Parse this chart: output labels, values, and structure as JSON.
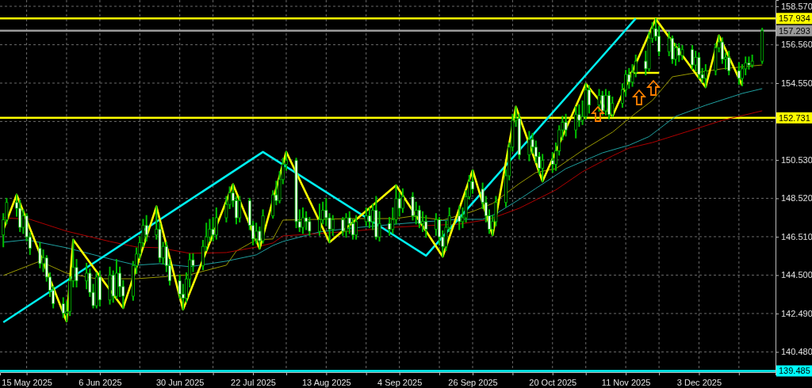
{
  "chart_data": {
    "type": "candlestick",
    "color": "#00c000",
    "x": [
      "2025-05-08",
      "2025-05-09",
      "2025-05-12",
      "2025-05-13",
      "2025-05-14",
      "2025-05-15",
      "2025-05-16",
      "2025-05-19",
      "2025-05-20",
      "2025-05-21",
      "2025-05-22",
      "2025-05-23",
      "2025-05-26",
      "2025-05-27",
      "2025-05-28",
      "2025-05-29",
      "2025-05-30",
      "2025-06-02",
      "2025-06-03",
      "2025-06-04",
      "2025-06-05",
      "2025-06-06",
      "2025-06-09",
      "2025-06-10",
      "2025-06-11",
      "2025-06-12",
      "2025-06-13",
      "2025-06-16",
      "2025-06-17",
      "2025-06-18",
      "2025-06-19",
      "2025-06-20",
      "2025-06-23",
      "2025-06-24",
      "2025-06-25",
      "2025-06-26",
      "2025-06-27",
      "2025-06-30",
      "2025-07-01",
      "2025-07-02",
      "2025-07-03",
      "2025-07-04",
      "2025-07-07",
      "2025-07-08",
      "2025-07-09",
      "2025-07-10",
      "2025-07-11",
      "2025-07-14",
      "2025-07-15",
      "2025-07-16",
      "2025-07-17",
      "2025-07-18",
      "2025-07-21",
      "2025-07-22",
      "2025-07-23",
      "2025-07-24",
      "2025-07-25",
      "2025-07-28",
      "2025-07-29",
      "2025-07-30",
      "2025-07-31",
      "2025-08-01",
      "2025-08-04",
      "2025-08-05",
      "2025-08-06",
      "2025-08-07",
      "2025-08-08",
      "2025-08-11",
      "2025-08-12",
      "2025-08-13",
      "2025-08-14",
      "2025-08-15",
      "2025-08-18",
      "2025-08-19",
      "2025-08-20",
      "2025-08-21",
      "2025-08-22",
      "2025-08-25",
      "2025-08-26",
      "2025-08-27",
      "2025-08-28",
      "2025-08-29",
      "2025-09-01",
      "2025-09-02",
      "2025-09-03",
      "2025-09-04",
      "2025-09-05",
      "2025-09-08",
      "2025-09-09",
      "2025-09-10",
      "2025-09-11",
      "2025-09-12",
      "2025-09-15",
      "2025-09-16",
      "2025-09-17",
      "2025-09-18",
      "2025-09-19",
      "2025-09-22",
      "2025-09-23",
      "2025-09-24",
      "2025-09-25",
      "2025-09-26",
      "2025-09-29",
      "2025-09-30",
      "2025-10-01",
      "2025-10-02",
      "2025-10-03",
      "2025-10-06",
      "2025-10-07",
      "2025-10-08",
      "2025-10-09",
      "2025-10-10",
      "2025-10-13",
      "2025-10-14",
      "2025-10-15",
      "2025-10-16",
      "2025-10-17",
      "2025-10-20",
      "2025-10-21",
      "2025-10-22",
      "2025-10-23",
      "2025-10-24",
      "2025-10-27",
      "2025-10-28",
      "2025-10-29",
      "2025-10-30",
      "2025-10-31",
      "2025-11-03",
      "2025-11-04",
      "2025-11-05",
      "2025-11-06",
      "2025-11-07",
      "2025-11-10",
      "2025-11-11",
      "2025-11-12",
      "2025-11-13",
      "2025-11-14",
      "2025-11-17",
      "2025-11-18",
      "2025-11-19",
      "2025-11-20",
      "2025-11-21",
      "2025-11-24",
      "2025-11-25",
      "2025-11-26",
      "2025-11-27",
      "2025-11-28",
      "2025-12-01",
      "2025-12-02",
      "2025-12-03",
      "2025-12-04",
      "2025-12-05",
      "2025-12-08",
      "2025-12-09",
      "2025-12-10",
      "2025-12-11",
      "2025-12-12",
      "2025-12-15",
      "2025-12-16",
      "2025-12-17",
      "2025-12-18",
      "2025-12-19",
      "2025-12-22"
    ],
    "ohlc": [
      [
        146.6,
        147.7,
        146.0,
        147.4
      ],
      [
        147.4,
        148.5,
        147.2,
        148.3
      ],
      [
        148.3,
        148.71,
        147.6,
        148.0
      ],
      [
        148.0,
        148.4,
        146.8,
        147.0
      ],
      [
        147.0,
        147.9,
        146.7,
        147.6
      ],
      [
        147.6,
        147.7,
        146.3,
        146.5
      ],
      [
        146.5,
        146.7,
        145.6,
        145.9
      ],
      [
        145.9,
        146.2,
        144.9,
        145.1
      ],
      [
        145.1,
        145.8,
        144.7,
        145.4
      ],
      [
        145.4,
        145.5,
        144.2,
        144.4
      ],
      [
        144.4,
        144.6,
        143.4,
        143.7
      ],
      [
        143.7,
        143.9,
        142.8,
        143.0
      ],
      [
        143.0,
        143.3,
        142.3,
        142.5
      ],
      [
        142.5,
        143.1,
        142.08,
        142.6
      ],
      [
        142.6,
        144.4,
        142.4,
        144.2
      ],
      [
        144.2,
        146.35,
        143.9,
        144.9
      ],
      [
        144.9,
        145.3,
        143.9,
        144.2
      ],
      [
        144.2,
        145.1,
        143.8,
        144.6
      ],
      [
        144.6,
        144.8,
        143.4,
        143.6
      ],
      [
        143.6,
        144.0,
        142.8,
        142.9
      ],
      [
        142.9,
        144.6,
        142.8,
        144.4
      ],
      [
        144.4,
        144.7,
        142.9,
        143.2
      ],
      [
        143.2,
        144.9,
        143.0,
        144.5
      ],
      [
        144.5,
        144.7,
        143.1,
        143.4
      ],
      [
        143.4,
        145.3,
        143.3,
        144.6
      ],
      [
        144.6,
        144.9,
        143.4,
        143.9
      ],
      [
        143.9,
        144.2,
        142.78,
        143.4
      ],
      [
        143.4,
        145.2,
        143.2,
        145.0
      ],
      [
        145.0,
        145.9,
        144.6,
        145.6
      ],
      [
        145.6,
        146.5,
        145.4,
        146.2
      ],
      [
        146.2,
        147.4,
        146.0,
        147.1
      ],
      [
        147.1,
        147.6,
        146.3,
        146.6
      ],
      [
        146.6,
        148.09,
        146.4,
        146.9
      ],
      [
        146.9,
        147.2,
        145.2,
        145.4
      ],
      [
        145.4,
        146.2,
        145.1,
        146.0
      ],
      [
        146.0,
        146.2,
        144.7,
        145.0
      ],
      [
        145.0,
        145.3,
        144.0,
        144.2
      ],
      [
        144.2,
        144.5,
        143.3,
        143.5
      ],
      [
        143.5,
        144.0,
        142.7,
        143.3
      ],
      [
        143.3,
        144.6,
        143.1,
        144.3
      ],
      [
        144.3,
        145.6,
        143.9,
        145.3
      ],
      [
        145.3,
        145.6,
        144.7,
        145.0
      ],
      [
        145.0,
        146.3,
        144.8,
        146.0
      ],
      [
        146.0,
        147.2,
        145.8,
        146.5
      ],
      [
        146.5,
        147.4,
        146.3,
        146.9
      ],
      [
        146.9,
        147.5,
        146.3,
        146.6
      ],
      [
        146.6,
        148.0,
        146.4,
        147.5
      ],
      [
        147.5,
        148.6,
        147.3,
        148.2
      ],
      [
        148.2,
        149.1,
        148.0,
        148.8
      ],
      [
        148.8,
        149.25,
        148.1,
        148.4
      ],
      [
        148.4,
        148.6,
        147.2,
        147.5
      ],
      [
        147.5,
        148.6,
        147.3,
        148.4
      ],
      [
        148.4,
        148.5,
        146.9,
        147.1
      ],
      [
        147.1,
        147.3,
        146.1,
        146.4
      ],
      [
        146.4,
        147.2,
        146.2,
        146.8
      ],
      [
        146.8,
        147.0,
        145.89,
        146.3
      ],
      [
        146.3,
        147.9,
        146.2,
        147.6
      ],
      [
        147.6,
        148.9,
        147.5,
        148.7
      ],
      [
        148.7,
        149.4,
        148.2,
        148.4
      ],
      [
        148.4,
        149.9,
        148.3,
        149.5
      ],
      [
        149.5,
        150.6,
        149.3,
        150.3
      ],
      [
        150.3,
        150.95,
        150.0,
        150.5
      ],
      [
        150.5,
        150.6,
        147.0,
        147.3
      ],
      [
        147.3,
        147.9,
        146.8,
        147.0
      ],
      [
        147.0,
        148.0,
        146.7,
        147.5
      ],
      [
        147.5,
        147.8,
        146.9,
        147.3
      ],
      [
        147.3,
        147.5,
        146.6,
        146.8
      ],
      [
        146.8,
        148.2,
        146.6,
        147.4
      ],
      [
        147.4,
        148.3,
        147.2,
        147.9
      ],
      [
        147.9,
        148.5,
        147.1,
        147.5
      ],
      [
        147.5,
        147.7,
        146.22,
        146.9
      ],
      [
        146.9,
        147.6,
        146.6,
        147.4
      ],
      [
        147.4,
        147.5,
        146.6,
        146.8
      ],
      [
        146.8,
        147.7,
        146.5,
        147.5
      ],
      [
        147.5,
        147.8,
        146.7,
        147.2
      ],
      [
        147.2,
        147.4,
        146.4,
        146.6
      ],
      [
        146.6,
        147.6,
        146.4,
        147.3
      ],
      [
        147.3,
        148.0,
        147.1,
        147.6
      ],
      [
        147.6,
        148.0,
        147.0,
        147.3
      ],
      [
        147.3,
        148.2,
        146.9,
        147.9
      ],
      [
        147.9,
        148.6,
        146.4,
        146.5
      ],
      [
        146.5,
        147.8,
        146.3,
        147.2
      ],
      [
        147.2,
        147.5,
        146.6,
        146.9
      ],
      [
        146.9,
        148.0,
        146.7,
        147.4
      ],
      [
        147.4,
        149.2,
        147.2,
        148.5
      ],
      [
        148.5,
        148.8,
        147.6,
        148.0
      ],
      [
        148.0,
        149.0,
        147.8,
        148.6
      ],
      [
        148.6,
        148.8,
        147.4,
        147.6
      ],
      [
        147.6,
        148.3,
        147.2,
        147.9
      ],
      [
        147.9,
        148.1,
        147.0,
        147.2
      ],
      [
        147.2,
        147.8,
        146.8,
        147.3
      ],
      [
        147.3,
        147.6,
        146.5,
        146.9
      ],
      [
        146.9,
        147.7,
        146.6,
        147.4
      ],
      [
        147.4,
        147.5,
        146.1,
        146.5
      ],
      [
        146.5,
        146.8,
        145.47,
        146.0
      ],
      [
        146.0,
        147.3,
        145.8,
        147.0
      ],
      [
        147.0,
        148.0,
        146.8,
        147.6
      ],
      [
        147.6,
        148.1,
        146.9,
        147.3
      ],
      [
        147.3,
        148.0,
        147.0,
        147.5
      ],
      [
        147.5,
        148.9,
        147.3,
        148.6
      ],
      [
        148.6,
        149.7,
        148.5,
        149.4
      ],
      [
        149.4,
        149.99,
        148.8,
        149.0
      ],
      [
        149.0,
        149.3,
        148.0,
        148.3
      ],
      [
        148.3,
        148.6,
        147.3,
        147.6
      ],
      [
        147.6,
        147.9,
        146.7,
        146.9
      ],
      [
        146.9,
        147.6,
        146.59,
        147.3
      ],
      [
        147.3,
        148.6,
        147.1,
        148.3
      ],
      [
        148.3,
        150.0,
        148.1,
        149.7
      ],
      [
        149.7,
        151.4,
        149.5,
        151.2
      ],
      [
        151.2,
        152.9,
        151.0,
        152.6
      ],
      [
        152.6,
        153.31,
        152.3,
        152.7
      ],
      [
        152.7,
        152.9,
        150.6,
        150.8
      ],
      [
        150.8,
        152.0,
        150.5,
        151.6
      ],
      [
        151.6,
        151.9,
        150.9,
        151.2
      ],
      [
        151.2,
        151.5,
        150.4,
        150.7
      ],
      [
        150.7,
        150.9,
        149.8,
        150.1
      ],
      [
        150.1,
        150.8,
        149.41,
        150.5
      ],
      [
        150.5,
        150.9,
        149.9,
        150.3
      ],
      [
        150.3,
        151.4,
        150.0,
        151.0
      ],
      [
        151.0,
        152.3,
        150.8,
        152.1
      ],
      [
        152.1,
        152.8,
        151.6,
        152.5
      ],
      [
        152.5,
        152.9,
        151.8,
        152.1
      ],
      [
        152.1,
        153.3,
        151.7,
        152.9
      ],
      [
        152.9,
        153.4,
        152.3,
        152.6
      ],
      [
        152.6,
        153.6,
        152.4,
        152.8
      ],
      [
        152.8,
        154.51,
        152.7,
        154.2
      ],
      [
        154.2,
        154.4,
        153.0,
        153.4
      ],
      [
        153.4,
        154.2,
        153.1,
        153.9
      ],
      [
        153.9,
        154.1,
        152.9,
        153.1
      ],
      [
        153.1,
        154.2,
        152.9,
        153.9
      ],
      [
        153.9,
        154.1,
        152.7,
        152.9
      ],
      [
        152.9,
        153.8,
        152.81,
        153.5
      ],
      [
        153.5,
        154.5,
        153.3,
        154.2
      ],
      [
        154.2,
        155.2,
        153.9,
        155.0
      ],
      [
        155.0,
        155.3,
        154.3,
        154.6
      ],
      [
        154.6,
        155.5,
        154.4,
        155.1
      ],
      [
        155.1,
        156.0,
        154.9,
        155.7
      ],
      [
        155.7,
        156.2,
        155.0,
        155.3
      ],
      [
        155.3,
        157.2,
        155.2,
        156.9
      ],
      [
        156.9,
        157.7,
        156.7,
        157.4
      ],
      [
        157.4,
        157.91,
        156.8,
        157.0
      ],
      [
        157.0,
        157.5,
        156.0,
        156.2
      ],
      [
        156.2,
        157.2,
        156.0,
        156.9
      ],
      [
        156.9,
        157.0,
        155.6,
        155.8
      ],
      [
        155.8,
        156.6,
        155.5,
        156.4
      ],
      [
        156.4,
        156.6,
        155.7,
        156.0
      ],
      [
        156.0,
        156.5,
        155.8,
        156.3
      ],
      [
        156.3,
        156.5,
        155.3,
        155.5
      ],
      [
        155.5,
        156.2,
        155.2,
        155.9
      ],
      [
        155.9,
        156.1,
        154.8,
        155.0
      ],
      [
        155.0,
        155.3,
        154.6,
        154.8
      ],
      [
        154.8,
        155.5,
        154.34,
        155.2
      ],
      [
        155.2,
        156.6,
        155.0,
        156.4
      ],
      [
        156.4,
        157.04,
        156.2,
        156.7
      ],
      [
        156.7,
        156.9,
        155.6,
        155.8
      ],
      [
        155.8,
        156.1,
        155.3,
        155.9
      ],
      [
        155.9,
        156.2,
        155.0,
        155.2
      ],
      [
        155.2,
        155.6,
        154.5,
        154.8
      ],
      [
        154.8,
        155.5,
        154.43,
        155.3
      ],
      [
        155.3,
        155.9,
        155.0,
        155.6
      ],
      [
        155.6,
        155.9,
        155.3,
        155.5
      ],
      [
        155.5,
        156.0,
        155.4,
        155.7
      ],
      [
        155.7,
        157.4,
        155.6,
        157.29
      ]
    ],
    "series": [
      {
        "type": "line",
        "color": "#9a9a00",
        "x": [
          "2025-05-08",
          "2025-05-19",
          "2025-05-27",
          "2025-06-05",
          "2025-06-17",
          "2025-06-24",
          "2025-07-03",
          "2025-07-14",
          "2025-07-17",
          "2025-07-23",
          "2025-07-28",
          "2025-07-31",
          "2025-08-11",
          "2025-08-21",
          "2025-09-03",
          "2025-09-08",
          "2025-09-17",
          "2025-09-26",
          "2025-10-02",
          "2025-10-10",
          "2025-10-15",
          "2025-10-21",
          "2025-10-29",
          "2025-11-07",
          "2025-11-14",
          "2025-11-19",
          "2025-11-25",
          "2025-12-02",
          "2025-12-10",
          "2025-12-22"
        ],
        "values": [
          144.48,
          145.23,
          144.6,
          144.31,
          144.31,
          144.4,
          144.52,
          145.02,
          145.76,
          146.35,
          146.39,
          147.38,
          147.42,
          147.46,
          147.46,
          147.59,
          147.38,
          147.83,
          148.25,
          149.29,
          149.87,
          150.07,
          151.03,
          151.98,
          152.98,
          153.64,
          154.88,
          155.09,
          155.3,
          155.5
        ]
      },
      {
        "type": "line",
        "color": "#1fa0a0",
        "x": [
          "2025-05-08",
          "2025-05-15",
          "2025-05-27",
          "2025-06-09",
          "2025-06-17",
          "2025-06-24",
          "2025-07-03",
          "2025-07-14",
          "2025-07-23",
          "2025-07-28",
          "2025-07-31",
          "2025-08-11",
          "2025-08-21",
          "2025-09-03",
          "2025-09-12",
          "2025-09-22",
          "2025-09-29",
          "2025-10-03",
          "2025-10-10",
          "2025-10-15",
          "2025-10-24",
          "2025-11-04",
          "2025-11-12",
          "2025-11-18",
          "2025-11-26",
          "2025-12-05",
          "2025-12-16",
          "2025-12-22"
        ],
        "values": [
          146.22,
          146.35,
          145.93,
          145.35,
          145.02,
          145.1,
          144.94,
          145.23,
          145.56,
          146.05,
          146.26,
          146.76,
          146.97,
          147.17,
          147.3,
          147.42,
          147.42,
          147.71,
          148.46,
          149.04,
          150.07,
          150.9,
          151.3,
          151.75,
          152.81,
          153.39,
          154.01,
          154.26
        ]
      },
      {
        "type": "line",
        "color": "#b00000",
        "x": [
          "2025-05-08",
          "2025-05-16",
          "2025-05-27",
          "2025-06-09",
          "2025-06-17",
          "2025-06-24",
          "2025-07-03",
          "2025-07-14",
          "2025-07-23",
          "2025-07-28",
          "2025-07-31",
          "2025-08-11",
          "2025-08-21",
          "2025-09-03",
          "2025-09-12",
          "2025-09-22",
          "2025-10-01",
          "2025-10-10",
          "2025-10-21",
          "2025-10-29",
          "2025-11-07",
          "2025-11-12",
          "2025-11-19",
          "2025-12-02",
          "2025-12-10",
          "2025-12-22"
        ],
        "values": [
          147.5,
          147.42,
          146.8,
          146.26,
          145.97,
          145.93,
          145.64,
          145.68,
          145.97,
          146.18,
          146.55,
          146.68,
          146.8,
          147.01,
          147.09,
          147.17,
          147.42,
          148.0,
          148.96,
          149.91,
          150.74,
          151.15,
          151.44,
          152.15,
          152.6,
          153.1
        ]
      },
      {
        "type": "line",
        "color": "#00f0f0",
        "x": [
          "2025-05-08",
          "2025-07-25",
          "2025-09-12",
          "2025-11-14"
        ],
        "values": [
          142.03,
          150.95,
          145.52,
          157.93
        ]
      },
      {
        "type": "line",
        "color": "#ffff00",
        "x": [
          "2025-05-08",
          "2025-05-12",
          "2025-05-27",
          "2025-05-29",
          "2025-06-13",
          "2025-06-23",
          "2025-07-01",
          "2025-07-16",
          "2025-07-24",
          "2025-08-01",
          "2025-08-14",
          "2025-09-03",
          "2025-09-17",
          "2025-09-26",
          "2025-10-02",
          "2025-10-09",
          "2025-10-17",
          "2025-10-30",
          "2025-11-07",
          "2025-11-20",
          "2025-12-05",
          "2025-12-09",
          "2025-12-16"
        ],
        "values": [
          146.88,
          148.71,
          142.08,
          146.35,
          142.78,
          148.09,
          142.7,
          149.25,
          145.89,
          150.95,
          146.22,
          149.2,
          145.47,
          149.99,
          146.59,
          153.31,
          149.41,
          154.51,
          152.81,
          157.91,
          154.34,
          157.04,
          154.43
        ]
      },
      {
        "type": "line",
        "color": "#ffff00",
        "x": [
          "2025-11-12",
          "2025-11-21"
        ],
        "values": [
          155.09,
          155.09
        ]
      }
    ],
    "xlim": [
      "2025-05-07",
      "2025-12-26"
    ],
    "ylim": [
      139.42,
      158.9
    ],
    "xticks": [
      {
        "value": "2025-05-15",
        "label": "15 May 2025"
      },
      {
        "value": "2025-05-27",
        "label": null
      },
      {
        "value": "2025-06-06",
        "label": "6 Jun 2025"
      },
      {
        "value": "2025-06-18",
        "label": null
      },
      {
        "value": "2025-06-30",
        "label": "30 Jun 2025"
      },
      {
        "value": "2025-07-10",
        "label": null
      },
      {
        "value": "2025-07-22",
        "label": "22 Jul 2025"
      },
      {
        "value": "2025-08-01",
        "label": null
      },
      {
        "value": "2025-08-13",
        "label": "13 Aug 2025"
      },
      {
        "value": "2025-08-25",
        "label": null
      },
      {
        "value": "2025-09-04",
        "label": "4 Sep 2025"
      },
      {
        "value": "2025-09-16",
        "label": null
      },
      {
        "value": "2025-09-26",
        "label": "26 Sep 2025"
      },
      {
        "value": "2025-10-08",
        "label": null
      },
      {
        "value": "2025-10-20",
        "label": "20 Oct 2025"
      },
      {
        "value": "2025-10-30",
        "label": null
      },
      {
        "value": "2025-11-11",
        "label": "11 Nov 2025"
      },
      {
        "value": "2025-11-21",
        "label": null
      },
      {
        "value": "2025-12-03",
        "label": "3 Dec 2025"
      },
      {
        "value": "2025-12-15",
        "label": null
      }
    ],
    "yticks": [
      {
        "value": 140.48,
        "label": "140.480"
      },
      {
        "value": 142.49,
        "label": "142.490"
      },
      {
        "value": 144.5,
        "label": "144.500"
      },
      {
        "value": 146.51,
        "label": "146.510"
      },
      {
        "value": 148.52,
        "label": "148.520"
      },
      {
        "value": 150.53,
        "label": "150.530"
      },
      {
        "value": 152.54,
        "label": null
      },
      {
        "value": 154.55,
        "label": "154.550"
      },
      {
        "value": 156.56,
        "label": "156.560"
      },
      {
        "value": 158.57,
        "label": "158.570"
      }
    ],
    "ref_lines": [
      {
        "axis": "y",
        "value": 157.934,
        "label": "157.934",
        "color": "#ffff00"
      },
      {
        "axis": "y",
        "value": 157.293,
        "label": "157.293",
        "color": "#9a9a9a"
      },
      {
        "axis": "y",
        "value": 152.731,
        "label": "152.731",
        "color": "#ffff00"
      },
      {
        "axis": "y",
        "value": 139.485,
        "label": "139.485",
        "color": "#00ffff"
      }
    ],
    "grid": true
  }
}
